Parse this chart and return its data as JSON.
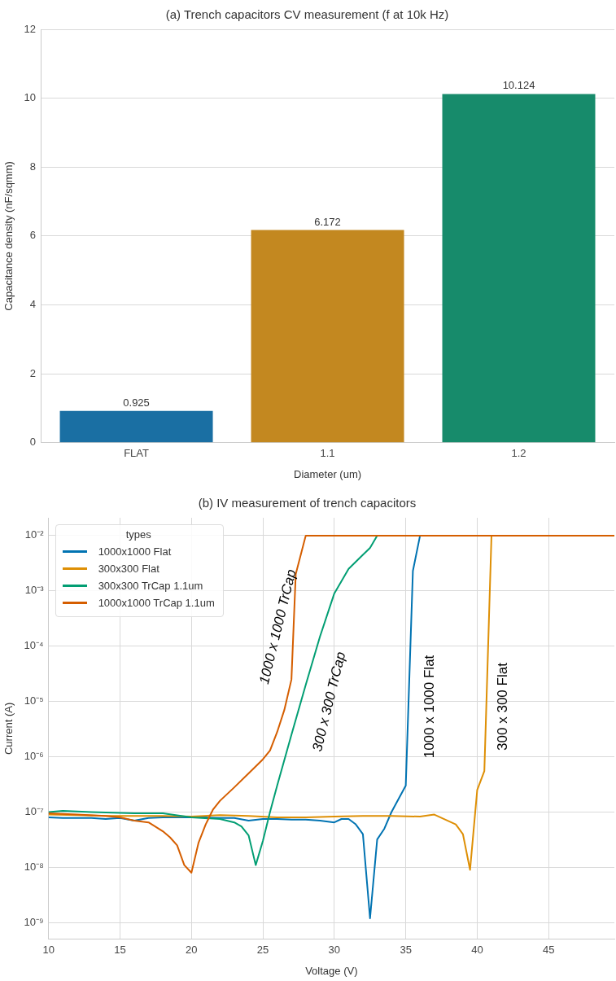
{
  "chart_data": [
    {
      "type": "bar",
      "title": "(a) Trench capacitors CV measurement (f at 10k Hz)",
      "xlabel": "Diameter (um)",
      "ylabel": "Capacitance density (nF/sqmm)",
      "categories": [
        "FLAT",
        "1.1",
        "1.2"
      ],
      "values": [
        0.925,
        6.172,
        10.124
      ],
      "colors": [
        "#1a6fa3",
        "#c38820",
        "#178b6b"
      ],
      "ylim": [
        0,
        12
      ],
      "yticks": [
        0,
        2,
        4,
        6,
        8,
        10,
        12
      ],
      "grid": "y",
      "data_labels": true
    },
    {
      "type": "line",
      "title": "(b) IV measurement of trench capacitors",
      "xlabel": "Voltage (V)",
      "ylabel": "Current (A)",
      "legend_title": "types",
      "legend": "top left",
      "log": "y",
      "grid": true,
      "xlim": [
        10,
        49.6
      ],
      "xticks": [
        10,
        15,
        20,
        25,
        30,
        35,
        40,
        45
      ],
      "ylim": [
        5e-10,
        0.021
      ],
      "yticks": [
        {
          "value": 1e-09,
          "label": "10⁻⁹"
        },
        {
          "value": 1e-08,
          "label": "10⁻⁸"
        },
        {
          "value": 1e-07,
          "label": "10⁻⁷"
        },
        {
          "value": 1e-06,
          "label": "10⁻⁶"
        },
        {
          "value": 1e-05,
          "label": "10⁻⁵"
        },
        {
          "value": 0.0001,
          "label": "10⁻⁴"
        },
        {
          "value": 0.001,
          "label": "10⁻³"
        },
        {
          "value": 0.01,
          "label": "10⁻²"
        }
      ],
      "series": [
        {
          "name": "1000x1000 Flat",
          "color": "#0173b2",
          "x": [
            10,
            11,
            12,
            13,
            14,
            15,
            16,
            17,
            18,
            19,
            20,
            21,
            22,
            23,
            24,
            25,
            26,
            27,
            28,
            29,
            30,
            30.5,
            31,
            31.5,
            32,
            32.5,
            33,
            33.5,
            34,
            35,
            35.5,
            36
          ],
          "values": [
            8e-08,
            7.8e-08,
            7.8e-08,
            7.8e-08,
            7.5e-08,
            7.8e-08,
            7e-08,
            7.8e-08,
            8e-08,
            8e-08,
            8e-08,
            8e-08,
            7.8e-08,
            7.8e-08,
            7e-08,
            7.5e-08,
            7.5e-08,
            7.3e-08,
            7.3e-08,
            7e-08,
            6.5e-08,
            7.5e-08,
            7.5e-08,
            6e-08,
            4e-08,
            1.2e-09,
            3.2e-08,
            5e-08,
            1e-07,
            3e-07,
            0.0023,
            0.01
          ]
        },
        {
          "name": "300x300 Flat",
          "color": "#de8f05",
          "x": [
            10,
            12,
            14,
            16,
            18,
            20,
            22,
            24,
            26,
            28,
            30,
            32,
            34,
            36,
            37,
            38.5,
            39,
            39.5,
            40,
            40.5,
            41
          ],
          "values": [
            9e-08,
            8.8e-08,
            8.5e-08,
            8.5e-08,
            8.5e-08,
            8.3e-08,
            8.8e-08,
            8.5e-08,
            8e-08,
            8e-08,
            8.3e-08,
            8.5e-08,
            8.5e-08,
            8.3e-08,
            9e-08,
            6e-08,
            4e-08,
            9e-09,
            2.5e-07,
            5.5e-07,
            0.01
          ]
        },
        {
          "name": "300x300 TrCap 1.1um",
          "color": "#029e73",
          "x": [
            10,
            11,
            13,
            16,
            18,
            20,
            22,
            23,
            23.5,
            24,
            24.5,
            25,
            25.5,
            26,
            27,
            28,
            29,
            30,
            31,
            32,
            32.5,
            33
          ],
          "values": [
            1e-07,
            1.05e-07,
            1e-07,
            9.5e-08,
            9.5e-08,
            8e-08,
            7.5e-08,
            6.5e-08,
            5.5e-08,
            3.8e-08,
            1.1e-08,
            3e-08,
            1e-07,
            3e-07,
            2.5e-06,
            2e-05,
            0.00015,
            0.0009,
            0.0025,
            0.0045,
            0.006,
            0.01
          ]
        },
        {
          "name": "1000x1000 TrCap 1.1um",
          "color": "#d55e00",
          "x": [
            10,
            12,
            14,
            15,
            16,
            17,
            18,
            18.5,
            19,
            19.5,
            20,
            20.5,
            21,
            21.5,
            22,
            23,
            24,
            25,
            25.5,
            26,
            26.5,
            27,
            27.3,
            28,
            35,
            49.6
          ],
          "values": [
            9.5e-08,
            9e-08,
            8.5e-08,
            8e-08,
            7e-08,
            6.5e-08,
            4.5e-08,
            3.5e-08,
            2.5e-08,
            1.1e-08,
            8e-09,
            2.8e-08,
            6e-08,
            1.1e-07,
            1.6e-07,
            2.8e-07,
            5e-07,
            9e-07,
            1.3e-06,
            2.8e-06,
            7e-06,
            2.5e-05,
            0.002,
            0.01,
            0.01,
            0.01
          ]
        }
      ],
      "annotations": [
        "1000 x 1000 TrCap",
        "300 x 300 TrCap",
        "1000 x 1000 Flat",
        "300 x 300 Flat"
      ]
    }
  ]
}
